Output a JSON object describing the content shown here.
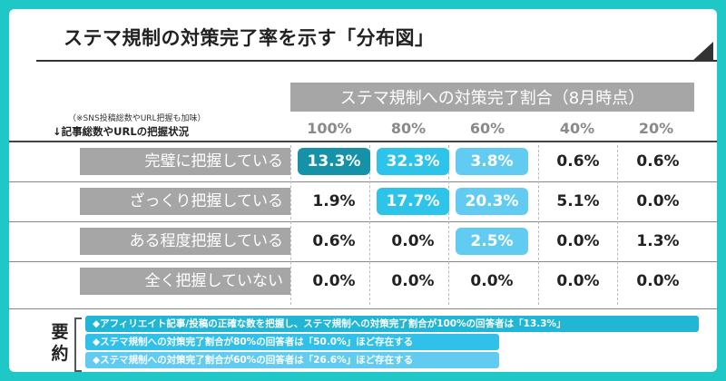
{
  "title": "ステマ規制の対策完了率を示す「分布図」",
  "column_header": "ステマ規制への対策完了割合（8月時点）",
  "percent_headers": [
    "100%",
    "80%",
    "60%",
    "40%",
    "20%"
  ],
  "row_header_note": "（※SNS投稿総数やURL把握も加味）",
  "row_header_main": "↓記事総数やURLの把握状況",
  "rows": [
    {
      "label": "完璧に把握している",
      "values": [
        "13.3%",
        "32.3%",
        "3.8%",
        "0.6%",
        "0.6%"
      ]
    },
    {
      "label": "ざっくり把握している",
      "values": [
        "1.9%",
        "17.7%",
        "20.3%",
        "5.1%",
        "0.0%"
      ]
    },
    {
      "label": "ある程度把握している",
      "values": [
        "0.6%",
        "0.0%",
        "2.5%",
        "0.0%",
        "1.3%"
      ]
    },
    {
      "label": "全く把握していない",
      "values": [
        "0.0%",
        "0.0%",
        "0.0%",
        "0.0%",
        "0.0%"
      ]
    }
  ],
  "summary": {
    "label": "要約",
    "items": [
      "◆アフィリエイト記事/投稿の正確な数を把握し、ステマ規制への対策完了割合が100%の回答者は「13.3%」",
      "◆ステマ規制への対策完了割合が80%の回答者は「50.0%」ほど存在する",
      "◆ステマ規制への対策完了割合が60%の回答者は「26.6%」ほど存在する"
    ]
  },
  "colors": {
    "background": "#1fc7c7",
    "highlight_dark": "#1592a8",
    "highlight_mid": "#2ec3e8",
    "highlight_light": "#62cbf2",
    "header_gray": "#a6a6a6"
  }
}
